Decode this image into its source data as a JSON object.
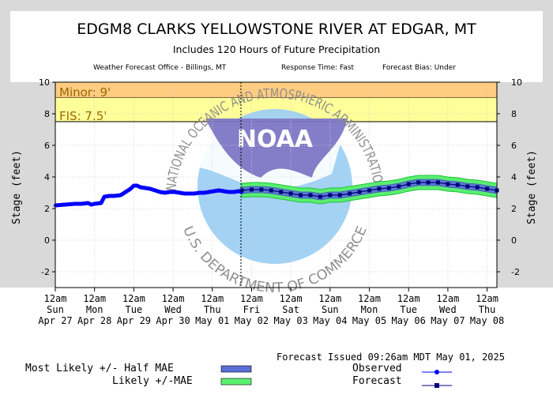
{
  "header": {
    "title": "EDGM8 CLARKS YELLOWSTONE RIVER AT EDGAR, MT",
    "subtitle": "Includes 120 Hours of Future Precipitation",
    "office": "Weather Forecast Office - Billings, MT",
    "response": "Response Time: Fast",
    "bias": "Forecast Bias:  Under"
  },
  "watermark": {
    "logo_text": "NOAA",
    "ring_top": "NATIONAL OCEANIC AND ATMOSPHERIC ADMINISTRATION",
    "ring_bottom": "U.S. DEPARTMENT OF COMMERCE"
  },
  "footer": {
    "issued": "Forecast Issued 09:26am MDT May 01, 2025",
    "legend": {
      "most_likely": "Most Likely +/- Half MAE",
      "likely": "Likely +/-MAE",
      "observed": "Observed",
      "forecast": "Forecast"
    }
  },
  "colors": {
    "observed": "#0000ff",
    "forecast": "#000080",
    "band_half_mae": "#5b6fd9",
    "band_mae": "#5aef70",
    "minor": "#ffcc80",
    "action": "#ffff99"
  },
  "chart_data": {
    "type": "line",
    "ylabel": "Stage (feet)",
    "ylim": [
      -3,
      10
    ],
    "yticks": [
      -2,
      0,
      2,
      4,
      6,
      8,
      10
    ],
    "xlim": [
      0,
      270
    ],
    "x_unit": "hours since 12am Sun Apr 27",
    "x_ticks": [
      {
        "x": 0,
        "lines": [
          "12am",
          "Sun",
          "Apr 27"
        ]
      },
      {
        "x": 24,
        "lines": [
          "12am",
          "Mon",
          "Apr 28"
        ]
      },
      {
        "x": 48,
        "lines": [
          "12am",
          "Tue",
          "Apr 29"
        ]
      },
      {
        "x": 72,
        "lines": [
          "12am",
          "Wed",
          "Apr 30"
        ]
      },
      {
        "x": 96,
        "lines": [
          "12am",
          "Thu",
          "May 01"
        ]
      },
      {
        "x": 120,
        "lines": [
          "12am",
          "Fri",
          "May 02"
        ]
      },
      {
        "x": 144,
        "lines": [
          "12am",
          "Sat",
          "May 03"
        ]
      },
      {
        "x": 168,
        "lines": [
          "12am",
          "Sun",
          "May 04"
        ]
      },
      {
        "x": 192,
        "lines": [
          "12am",
          "Mon",
          "May 05"
        ]
      },
      {
        "x": 216,
        "lines": [
          "12am",
          "Tue",
          "May 06"
        ]
      },
      {
        "x": 240,
        "lines": [
          "12am",
          "Wed",
          "May 07"
        ]
      },
      {
        "x": 264,
        "lines": [
          "12am",
          "Thu",
          "May 08"
        ]
      }
    ],
    "forecast_issued_x": 113.5,
    "thresholds": [
      {
        "label": "Minor: 9'",
        "value": 9,
        "top": 10
      },
      {
        "label": "FIS: 7.5'",
        "value": 7.5,
        "top": 9
      }
    ],
    "observed": {
      "x": [
        0,
        6,
        12,
        16,
        20,
        22,
        24,
        28,
        30,
        33,
        36,
        40,
        43,
        46,
        48,
        50,
        52,
        55,
        58,
        61,
        64,
        67,
        70,
        73,
        76,
        79,
        82,
        85,
        88,
        91,
        94,
        97,
        100,
        103,
        106,
        109,
        112,
        114
      ],
      "y": [
        2.2,
        2.25,
        2.3,
        2.3,
        2.35,
        2.25,
        2.3,
        2.35,
        2.75,
        2.8,
        2.8,
        2.85,
        3.05,
        3.25,
        3.45,
        3.45,
        3.35,
        3.3,
        3.25,
        3.15,
        3.05,
        3.0,
        3.05,
        3.05,
        3.0,
        2.95,
        2.95,
        2.95,
        3.0,
        3.0,
        3.05,
        3.1,
        3.15,
        3.1,
        3.05,
        3.05,
        3.1,
        3.05
      ]
    },
    "forecast": {
      "x": [
        114,
        120,
        126,
        132,
        138,
        144,
        150,
        156,
        162,
        168,
        174,
        180,
        186,
        192,
        198,
        204,
        210,
        216,
        222,
        228,
        234,
        240,
        246,
        252,
        258,
        264,
        270
      ],
      "y": [
        3.15,
        3.2,
        3.2,
        3.15,
        3.05,
        2.95,
        2.85,
        2.85,
        2.75,
        2.85,
        2.85,
        2.95,
        3.05,
        3.15,
        3.25,
        3.3,
        3.4,
        3.55,
        3.65,
        3.65,
        3.65,
        3.55,
        3.5,
        3.4,
        3.35,
        3.25,
        3.15
      ]
    },
    "half_mae": 0.2,
    "mae": 0.45
  }
}
